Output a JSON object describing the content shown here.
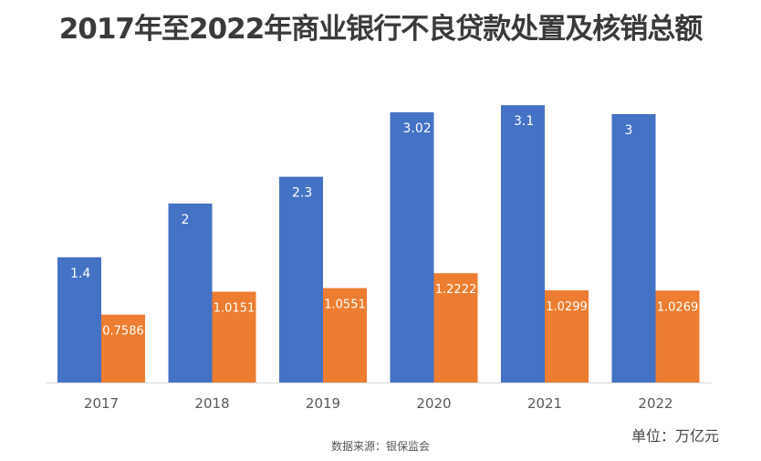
{
  "chart_data": {
    "type": "bar",
    "title": "2017年至2022年商业银行不良贷款处置及核销总额",
    "categories": [
      "2017",
      "2018",
      "2019",
      "2020",
      "2021",
      "2022"
    ],
    "series": [
      {
        "name": "",
        "color": "#4472c4",
        "values": [
          1.4,
          2,
          2.3,
          3.02,
          3.1,
          3
        ],
        "labels": [
          "1.4",
          "2",
          "2.3",
          "3.02",
          "3.1",
          "3"
        ]
      },
      {
        "name": "",
        "color": "#ed7d31",
        "values": [
          0.7586,
          1.0151,
          1.0551,
          1.2222,
          1.0299,
          1.0269
        ],
        "labels": [
          "0.7586",
          "1.0151",
          "1.0551",
          "1.2222",
          "1.0299",
          "1.0269"
        ]
      }
    ],
    "ylim": [
      0,
      3.3
    ],
    "grid": false,
    "legend": "none",
    "xlabel": "",
    "ylabel": "",
    "unit_label": "单位：万亿元",
    "source": "数据来源：银保监会"
  }
}
